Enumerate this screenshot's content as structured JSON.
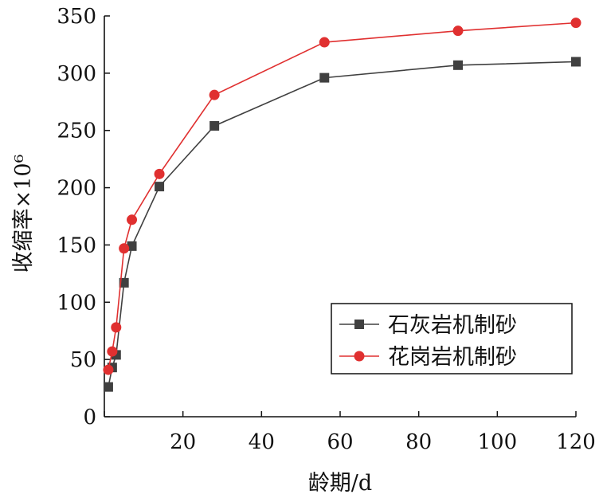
{
  "chart_data": {
    "type": "line",
    "title": "",
    "xlabel": "龄期/d",
    "ylabel": "收缩率×10⁶",
    "xlim": [
      0,
      120
    ],
    "ylim": [
      0,
      350
    ],
    "xticks": [
      0,
      20,
      40,
      60,
      80,
      100,
      120
    ],
    "xtick_labels": [
      "0",
      "20",
      "40",
      "60",
      "80",
      "100",
      "120"
    ],
    "yticks": [
      0,
      50,
      100,
      150,
      200,
      250,
      300,
      350
    ],
    "ytick_labels": [
      "0",
      "50",
      "100",
      "150",
      "200",
      "250",
      "300",
      "350"
    ],
    "grid": false,
    "legend_position": "bottom-right",
    "series": [
      {
        "name": "石灰岩机制砂",
        "color": "#404040",
        "marker": "square",
        "x": [
          1,
          2,
          3,
          5,
          7,
          14,
          28,
          56,
          90,
          120
        ],
        "y": [
          26,
          43,
          54,
          117,
          149,
          201,
          254,
          296,
          307,
          310
        ]
      },
      {
        "name": "花岗岩机制砂",
        "color": "#e03030",
        "marker": "circle",
        "x": [
          1,
          2,
          3,
          5,
          7,
          14,
          28,
          56,
          90,
          120
        ],
        "y": [
          41,
          57,
          78,
          147,
          172,
          212,
          281,
          327,
          337,
          344
        ]
      }
    ]
  }
}
